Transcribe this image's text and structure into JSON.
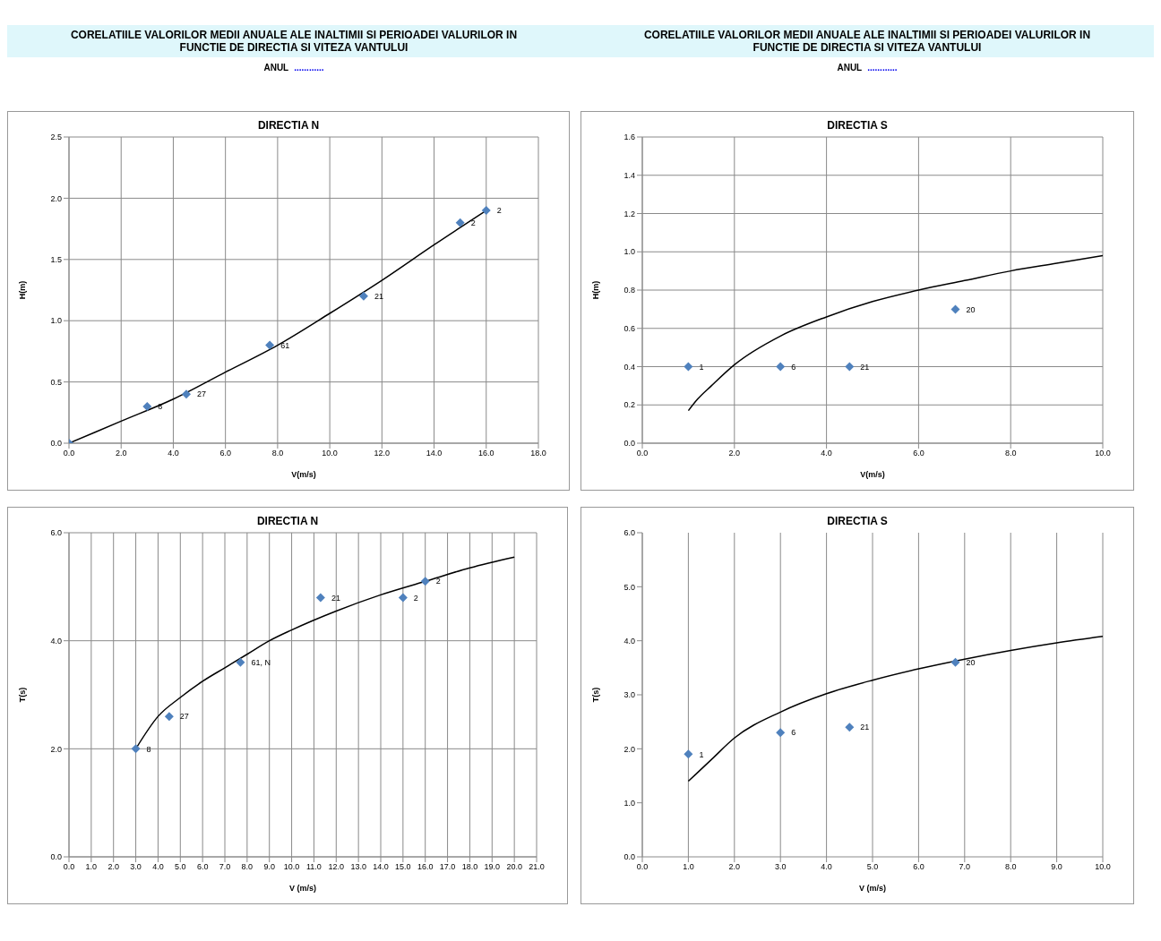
{
  "chart_data": [
    {
      "type": "scatter",
      "title": "DIRECTIA N",
      "xlabel": "V(m/s)",
      "ylabel": "H(m)",
      "xlim": [
        0,
        18
      ],
      "xticks": [
        {
          "value": 0,
          "label": "0.0"
        },
        {
          "value": 2,
          "label": "2.0"
        },
        {
          "value": 4,
          "label": "4.0"
        },
        {
          "value": 6,
          "label": "6.0"
        },
        {
          "value": 8,
          "label": "8.0"
        },
        {
          "value": 10,
          "label": "10.0"
        },
        {
          "value": 12,
          "label": "12.0"
        },
        {
          "value": 14,
          "label": "14.0"
        },
        {
          "value": 16,
          "label": "16.0"
        },
        {
          "value": 18,
          "label": "18.0"
        }
      ],
      "ylim": [
        0,
        2.5
      ],
      "yticks": [
        {
          "value": 0,
          "label": "0.0"
        },
        {
          "value": 0.5,
          "label": "0.5"
        },
        {
          "value": 1,
          "label": "1.0"
        },
        {
          "value": 1.5,
          "label": "1.5"
        },
        {
          "value": 2,
          "label": "2.0"
        },
        {
          "value": 2.5,
          "label": "2.5"
        }
      ],
      "grid": true,
      "series": [
        {
          "type": "scatter",
          "marker": "diamond",
          "color": "#4f81bd",
          "x": [
            0,
            3,
            4.5,
            7.7,
            11.3,
            15,
            16
          ],
          "values": [
            0,
            0.3,
            0.4,
            0.8,
            1.2,
            1.8,
            1.9
          ]
        },
        {
          "type": "line",
          "marker": "none",
          "color": "#000000",
          "x": [
            0,
            2,
            4,
            6,
            8,
            10,
            12,
            14,
            16
          ],
          "values": [
            0,
            0.18,
            0.36,
            0.58,
            0.8,
            1.06,
            1.33,
            1.62,
            1.9
          ]
        }
      ],
      "annotations": [
        "CORELATIILE  VALORILOR MEDII ANUALE ALE INALTIMII SI PERIOADEI VALURILOR IN FUNCTIE DE DIRECTIA SI VITEZA VANTULUI",
        "ANUL",
        "............",
        {
          "text": "8",
          "x": 3,
          "y": 0.3
        },
        {
          "text": "27",
          "x": 4.5,
          "y": 0.4
        },
        {
          "text": "61",
          "x": 7.7,
          "y": 0.8
        },
        {
          "text": "21",
          "x": 11.3,
          "y": 1.2
        },
        {
          "text": "2",
          "x": 15,
          "y": 1.8
        },
        {
          "text": "2",
          "x": 16,
          "y": 1.9
        }
      ]
    },
    {
      "type": "scatter",
      "title": "DIRECTIA S",
      "xlabel": "V(m/s)",
      "ylabel": "H(m)",
      "xlim": [
        0,
        10
      ],
      "xticks": [
        {
          "value": 0,
          "label": "0.0"
        },
        {
          "value": 2,
          "label": "2.0"
        },
        {
          "value": 4,
          "label": "4.0"
        },
        {
          "value": 6,
          "label": "6.0"
        },
        {
          "value": 8,
          "label": "8.0"
        },
        {
          "value": 10,
          "label": "10.0"
        }
      ],
      "ylim": [
        0,
        1.6
      ],
      "yticks": [
        {
          "value": 0,
          "label": "0.0"
        },
        {
          "value": 0.2,
          "label": "0.2"
        },
        {
          "value": 0.4,
          "label": "0.4"
        },
        {
          "value": 0.6,
          "label": "0.6"
        },
        {
          "value": 0.8,
          "label": "0.8"
        },
        {
          "value": 1,
          "label": "1.0"
        },
        {
          "value": 1.2,
          "label": "1.2"
        },
        {
          "value": 1.4,
          "label": "1.4"
        },
        {
          "value": 1.6,
          "label": "1.6"
        }
      ],
      "grid": true,
      "series": [
        {
          "type": "scatter",
          "marker": "diamond",
          "color": "#4f81bd",
          "x": [
            1,
            3,
            4.5,
            6.8
          ],
          "values": [
            0.4,
            0.4,
            0.4,
            0.7
          ]
        },
        {
          "type": "line",
          "marker": "none",
          "color": "#000000",
          "x": [
            1,
            1.2,
            1.5,
            2,
            3,
            4,
            5,
            6,
            7,
            8,
            9,
            10
          ],
          "values": [
            0.17,
            0.23,
            0.3,
            0.41,
            0.56,
            0.66,
            0.74,
            0.8,
            0.85,
            0.9,
            0.94,
            0.98
          ]
        }
      ],
      "annotations": [
        "CORELATIILE VALORILOR MEDII ANUALE ALE INALTIMII SI PERIOADEI VALURILOR IN FUNCTIE DE DIRECTIA SI VITEZA VANTULUI",
        "ANUL",
        "............",
        {
          "text": "1",
          "x": 1,
          "y": 0.4
        },
        {
          "text": "6",
          "x": 3,
          "y": 0.4
        },
        {
          "text": "21",
          "x": 4.5,
          "y": 0.4
        },
        {
          "text": "20",
          "x": 6.8,
          "y": 0.7
        }
      ]
    },
    {
      "type": "scatter",
      "title": "DIRECTIA N",
      "xlabel": "V (m/s)",
      "ylabel": "T(s)",
      "xlim": [
        0,
        21
      ],
      "xticks": [
        {
          "value": 0,
          "label": "0.0"
        },
        {
          "value": 1,
          "label": "1.0"
        },
        {
          "value": 2,
          "label": "2.0"
        },
        {
          "value": 3,
          "label": "3.0"
        },
        {
          "value": 4,
          "label": "4.0"
        },
        {
          "value": 5,
          "label": "5.0"
        },
        {
          "value": 6,
          "label": "6.0"
        },
        {
          "value": 7,
          "label": "7.0"
        },
        {
          "value": 8,
          "label": "8.0"
        },
        {
          "value": 9,
          "label": "9.0"
        },
        {
          "value": 10,
          "label": "10.0"
        },
        {
          "value": 11,
          "label": "11.0"
        },
        {
          "value": 12,
          "label": "12.0"
        },
        {
          "value": 13,
          "label": "13.0"
        },
        {
          "value": 14,
          "label": "14.0"
        },
        {
          "value": 15,
          "label": "15.0"
        },
        {
          "value": 16,
          "label": "16.0"
        },
        {
          "value": 17,
          "label": "17.0"
        },
        {
          "value": 18,
          "label": "18.0"
        },
        {
          "value": 19,
          "label": "19.0"
        },
        {
          "value": 20,
          "label": "20.0"
        },
        {
          "value": 21,
          "label": "21.0"
        }
      ],
      "ylim": [
        0,
        6
      ],
      "yticks": [
        {
          "value": 0,
          "label": "0.0"
        },
        {
          "value": 2,
          "label": "2.0"
        },
        {
          "value": 4,
          "label": "4.0"
        },
        {
          "value": 6,
          "label": "6.0"
        }
      ],
      "grid": true,
      "series": [
        {
          "type": "scatter",
          "marker": "diamond",
          "color": "#4f81bd",
          "x": [
            3,
            4.5,
            7.7,
            11.3,
            15,
            16
          ],
          "values": [
            2,
            2.6,
            3.6,
            4.8,
            4.8,
            5.1
          ]
        },
        {
          "type": "line",
          "marker": "none",
          "color": "#000000",
          "x": [
            3,
            4,
            5,
            6,
            7,
            8,
            9,
            10,
            12,
            14,
            16,
            18,
            20
          ],
          "values": [
            2,
            2.6,
            2.95,
            3.25,
            3.5,
            3.75,
            4,
            4.2,
            4.55,
            4.85,
            5.1,
            5.35,
            5.55
          ]
        }
      ],
      "annotations": [
        {
          "text": "8",
          "x": 3,
          "y": 2
        },
        {
          "text": "27",
          "x": 4.5,
          "y": 2.6
        },
        {
          "text": "61, N",
          "x": 7.7,
          "y": 3.6
        },
        {
          "text": "21",
          "x": 11.3,
          "y": 4.8
        },
        {
          "text": "2",
          "x": 15,
          "y": 4.8
        },
        {
          "text": "2",
          "x": 16,
          "y": 5.1
        }
      ]
    },
    {
      "type": "scatter",
      "title": "DIRECTIA S",
      "xlabel": "V (m/s)",
      "ylabel": "T(s)",
      "xlim": [
        0,
        10
      ],
      "xticks": [
        {
          "value": 0,
          "label": "0.0"
        },
        {
          "value": 1,
          "label": "1.0"
        },
        {
          "value": 2,
          "label": "2.0"
        },
        {
          "value": 3,
          "label": "3.0"
        },
        {
          "value": 4,
          "label": "4.0"
        },
        {
          "value": 5,
          "label": "5.0"
        },
        {
          "value": 6,
          "label": "6.0"
        },
        {
          "value": 7,
          "label": "7.0"
        },
        {
          "value": 8,
          "label": "8.0"
        },
        {
          "value": 9,
          "label": "9.0"
        },
        {
          "value": 10,
          "label": "10.0"
        }
      ],
      "ylim": [
        0,
        6
      ],
      "yticks": [
        {
          "value": 0,
          "label": "0.0"
        },
        {
          "value": 1,
          "label": "1.0"
        },
        {
          "value": 2,
          "label": "2.0"
        },
        {
          "value": 3,
          "label": "3.0"
        },
        {
          "value": 4,
          "label": "4.0"
        },
        {
          "value": 5,
          "label": "5.0"
        },
        {
          "value": 6,
          "label": "6.0"
        }
      ],
      "grid": "x",
      "series": [
        {
          "type": "scatter",
          "marker": "diamond",
          "color": "#4f81bd",
          "x": [
            1,
            3,
            4.5,
            6.8
          ],
          "values": [
            1.9,
            2.3,
            2.4,
            3.6
          ]
        },
        {
          "type": "line",
          "marker": "none",
          "color": "#000000",
          "x": [
            1,
            1.5,
            2,
            3,
            4,
            5,
            6,
            7,
            8,
            9,
            10
          ],
          "values": [
            1.4,
            1.8,
            2.2,
            2.68,
            3.02,
            3.27,
            3.48,
            3.66,
            3.82,
            3.96,
            4.08
          ]
        }
      ],
      "annotations": [
        {
          "text": "1",
          "x": 1,
          "y": 1.9
        },
        {
          "text": "6",
          "x": 3,
          "y": 2.3
        },
        {
          "text": "21",
          "x": 4.5,
          "y": 2.4
        },
        {
          "text": "20",
          "x": 6.8,
          "y": 3.6
        }
      ]
    }
  ]
}
